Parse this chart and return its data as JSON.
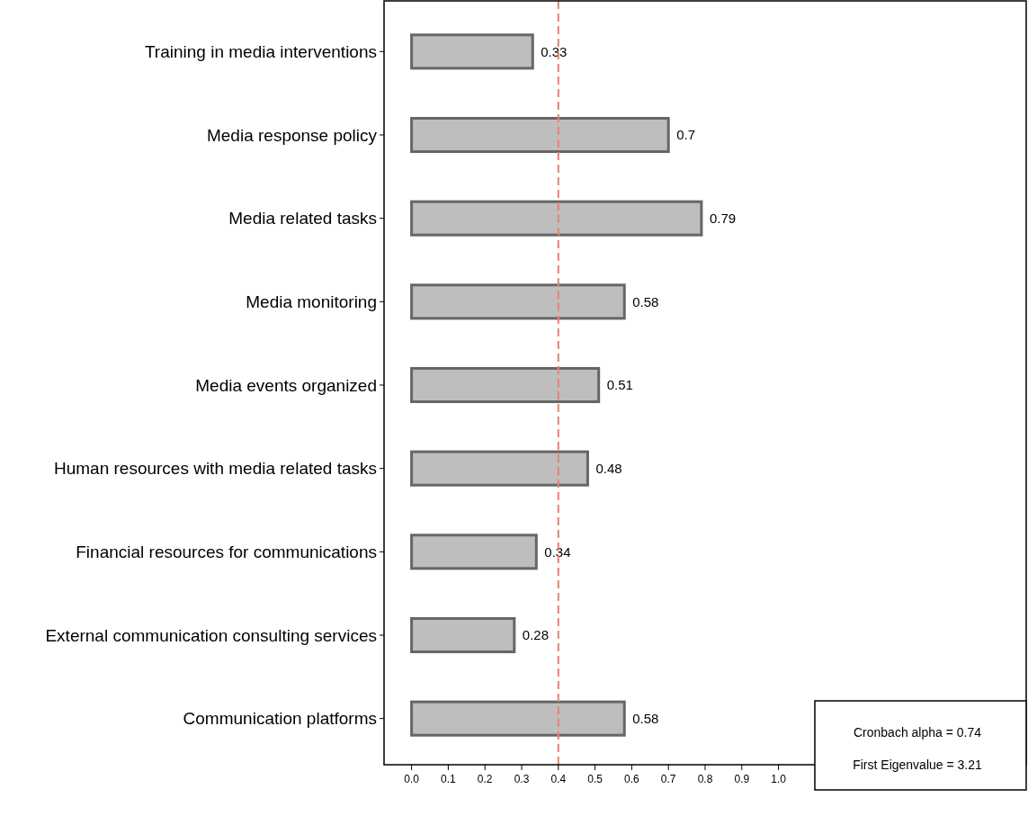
{
  "chart_data": {
    "type": "bar",
    "orientation": "horizontal",
    "categories": [
      "Training in media interventions",
      "Media response policy",
      "Media related tasks",
      "Media monitoring",
      "Media events organized",
      "Human resources with media related tasks",
      "Financial resources for communications",
      "External communication consulting services",
      "Communication platforms"
    ],
    "values": [
      0.33,
      0.7,
      0.79,
      0.58,
      0.51,
      0.48,
      0.34,
      0.28,
      0.58
    ],
    "color": "#bebebe",
    "data_labels": true,
    "xlim": [
      -0.075,
      1.675
    ],
    "xticks": [
      {
        "value": 0,
        "label": "0.0"
      },
      0.1,
      0.2,
      0.3,
      0.4,
      0.5,
      0.6,
      0.7,
      0.8,
      0.9,
      {
        "value": 1,
        "label": "1.0"
      }
    ],
    "ref_lines": [
      {
        "axis": "x",
        "value": 0.4,
        "color": "#e8826f",
        "line_style": "dashed"
      }
    ],
    "annotations": [
      "Cronbach alpha = 0.74",
      "First Eigenvalue = 3.21"
    ]
  }
}
